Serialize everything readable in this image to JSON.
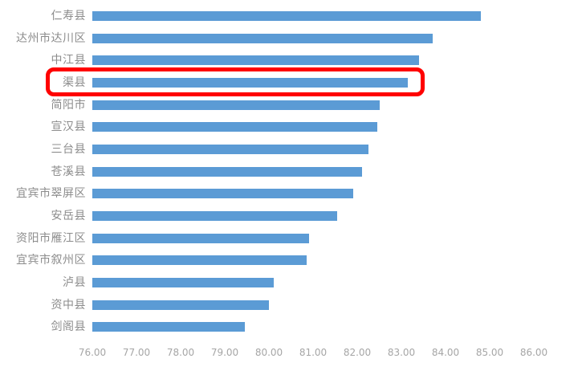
{
  "chart_data": {
    "type": "bar",
    "orientation": "horizontal",
    "title": "",
    "xlabel": "",
    "ylabel": "",
    "categories": [
      "仁寿县",
      "达州市达川区",
      "中江县",
      "渠县",
      "简阳市",
      "宣汉县",
      "三台县",
      "苍溪县",
      "宜宾市翠屏区",
      "安岳县",
      "资阳市雁江区",
      "宜宾市叙州区",
      "泸县",
      "资中县",
      "剑阁县"
    ],
    "values": [
      84.8,
      83.7,
      83.4,
      83.15,
      82.5,
      82.45,
      82.25,
      82.1,
      81.9,
      81.55,
      80.9,
      80.85,
      80.1,
      80.0,
      79.45
    ],
    "xlim": [
      76,
      86
    ],
    "x_tick_labels": [
      "76.00",
      "77.00",
      "78.00",
      "79.00",
      "80.00",
      "81.00",
      "82.00",
      "83.00",
      "84.00",
      "85.00",
      "86.00"
    ],
    "gridlines": false,
    "legend": false,
    "bar_color": "#5B9BD5",
    "category_label_color": "#8C8C8C",
    "tick_label_color": "#A6A6A6",
    "highlighted_category": "渠县",
    "highlight_index": 3,
    "highlight_box_color": "#FF0000"
  }
}
